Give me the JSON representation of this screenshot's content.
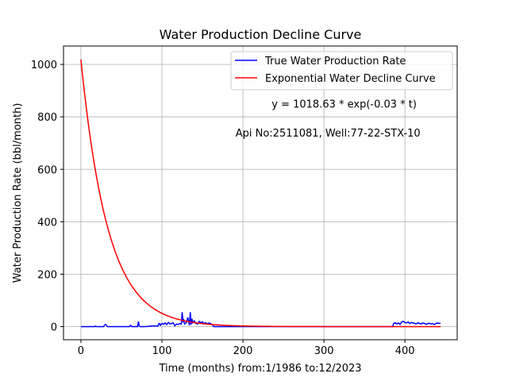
{
  "chart_data": {
    "type": "line",
    "title": "Water Production Decline Curve",
    "xlabel": "Time (months) from:1/1986 to:12/2023",
    "ylabel": "Water Production Rate (bbl/month)",
    "xlim": [
      -21.5,
      464.5
    ],
    "ylim": [
      -50,
      1070
    ],
    "xticks": [
      0,
      100,
      200,
      300,
      400
    ],
    "yticks": [
      0,
      200,
      400,
      600,
      800,
      1000
    ],
    "grid": true,
    "legend_position": "top-right",
    "annotations": [
      {
        "text": "y = 1018.63 * exp(-0.03 * t)",
        "x": 325,
        "y": 835
      },
      {
        "text": "Api No:2511081, Well:77-22-STX-10",
        "x": 305,
        "y": 725
      }
    ],
    "series": [
      {
        "name": "True Water Production Rate",
        "color": "#0000ff",
        "x": [
          0,
          17,
          18,
          19,
          20,
          28,
          29,
          30,
          31,
          32,
          33,
          34,
          35,
          60,
          61,
          62,
          63,
          70,
          71,
          72,
          73,
          80,
          85,
          90,
          95,
          96,
          97,
          98,
          100,
          102,
          104,
          106,
          108,
          110,
          112,
          114,
          116,
          118,
          120,
          122,
          124,
          125,
          126,
          127,
          128,
          130,
          132,
          134,
          135,
          136,
          137,
          138,
          140,
          142,
          144,
          146,
          148,
          150,
          152,
          154,
          156,
          158,
          160,
          162,
          164,
          170,
          200,
          250,
          300,
          350,
          380,
          385,
          386,
          388,
          390,
          392,
          394,
          396,
          398,
          400,
          402,
          404,
          406,
          408,
          410,
          412,
          414,
          416,
          418,
          420,
          422,
          424,
          426,
          428,
          430,
          432,
          434,
          436,
          438,
          440,
          442,
          444
        ],
        "y": [
          0,
          0,
          2,
          0,
          0,
          0,
          5,
          8,
          7,
          3,
          0,
          0,
          0,
          0,
          5,
          3,
          0,
          0,
          20,
          3,
          0,
          0,
          2,
          3,
          2,
          10,
          12,
          5,
          12,
          9,
          14,
          8,
          16,
          10,
          12,
          14,
          3,
          10,
          8,
          12,
          10,
          55,
          20,
          25,
          10,
          15,
          35,
          5,
          55,
          8,
          30,
          15,
          22,
          12,
          10,
          20,
          15,
          18,
          12,
          15,
          10,
          14,
          12,
          8,
          0,
          0,
          0,
          0,
          0,
          0,
          0,
          0,
          12,
          15,
          10,
          14,
          8,
          18,
          20,
          16,
          14,
          18,
          12,
          16,
          14,
          12,
          10,
          15,
          12,
          10,
          14,
          12,
          9,
          11,
          13,
          10,
          12,
          8,
          11,
          14,
          12,
          13
        ]
      },
      {
        "name": "Exponential Water Decline Curve",
        "color": "#ff0000",
        "equation": {
          "a": 1018.63,
          "b": 0.03
        },
        "x": [
          0,
          10,
          20,
          30,
          40,
          50,
          60,
          70,
          80,
          90,
          100,
          120,
          140,
          160,
          180,
          200,
          250,
          300,
          350,
          400,
          444
        ],
        "y": [
          1018.63,
          757.1,
          562.7,
          418.2,
          310.9,
          231.1,
          171.7,
          127.6,
          94.9,
          70.5,
          52.4,
          29.0,
          16.0,
          8.4,
          4.6,
          2.5,
          0.6,
          0.13,
          0.03,
          0.01,
          0.0
        ]
      }
    ]
  }
}
